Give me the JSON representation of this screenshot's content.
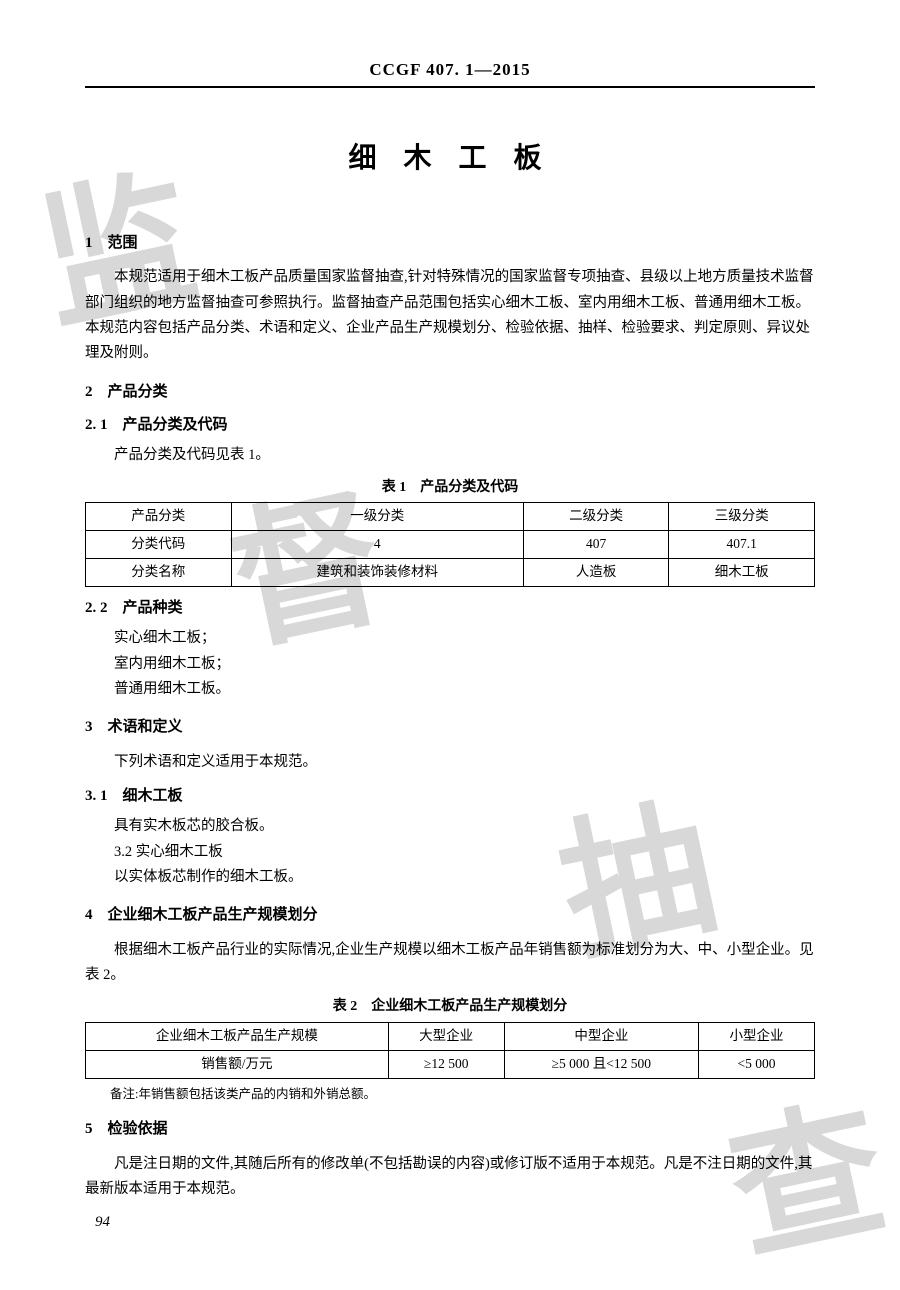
{
  "header_code": "CCGF 407. 1—2015",
  "doc_title": "细 木 工 板",
  "s1": {
    "num_title": "1　范围",
    "p1": "本规范适用于细木工板产品质量国家监督抽查,针对特殊情况的国家监督专项抽查、县级以上地方质量技术监督部门组织的地方监督抽查可参照执行。监督抽查产品范围包括实心细木工板、室内用细木工板、普通用细木工板。本规范内容包括产品分类、术语和定义、企业产品生产规模划分、检验依据、抽样、检验要求、判定原则、异议处理及附则。"
  },
  "s2": {
    "num_title": "2　产品分类",
    "s21": {
      "num_title": "2. 1　产品分类及代码",
      "line": "产品分类及代码见表 1。"
    },
    "t1": {
      "caption": "表 1　产品分类及代码",
      "r0": {
        "c0": "产品分类",
        "c1": "一级分类",
        "c2": "二级分类",
        "c3": "三级分类"
      },
      "r1": {
        "c0": "分类代码",
        "c1": "4",
        "c2": "407",
        "c3": "407.1"
      },
      "r2": {
        "c0": "分类名称",
        "c1": "建筑和装饰装修材料",
        "c2": "人造板",
        "c3": "细木工板"
      }
    },
    "s22": {
      "num_title": "2. 2　产品种类",
      "l1": "实心细木工板；",
      "l2": "室内用细木工板；",
      "l3": "普通用细木工板。"
    }
  },
  "s3": {
    "num_title": "3　术语和定义",
    "line": "下列术语和定义适用于本规范。",
    "s31": {
      "num_title": "3. 1　细木工板",
      "l1": "具有实木板芯的胶合板。",
      "l2": "3.2 实心细木工板",
      "l3": "以实体板芯制作的细木工板。"
    }
  },
  "s4": {
    "num_title": "4　企业细木工板产品生产规模划分",
    "p1": "根据细木工板产品行业的实际情况,企业生产规模以细木工板产品年销售额为标准划分为大、中、小型企业。见表 2。",
    "t2": {
      "caption": "表 2　企业细木工板产品生产规模划分",
      "r0": {
        "c0": "企业细木工板产品生产规模",
        "c1": "大型企业",
        "c2": "中型企业",
        "c3": "小型企业"
      },
      "r1": {
        "c0": "销售额/万元",
        "c1": "≥12 500",
        "c2": "≥5 000 且<12 500",
        "c3": "<5 000"
      }
    },
    "note": "备注:年销售额包括该类产品的内销和外销总额。"
  },
  "s5": {
    "num_title": "5　检验依据",
    "p1": "凡是注日期的文件,其随后所有的修改单(不包括勘误的内容)或修订版不适用于本规范。凡是不注日期的文件,其最新版本适用于本规范。"
  },
  "page_num": "94",
  "wm": {
    "c1": "监",
    "c2": "督",
    "c3": "抽",
    "c4": "查"
  }
}
